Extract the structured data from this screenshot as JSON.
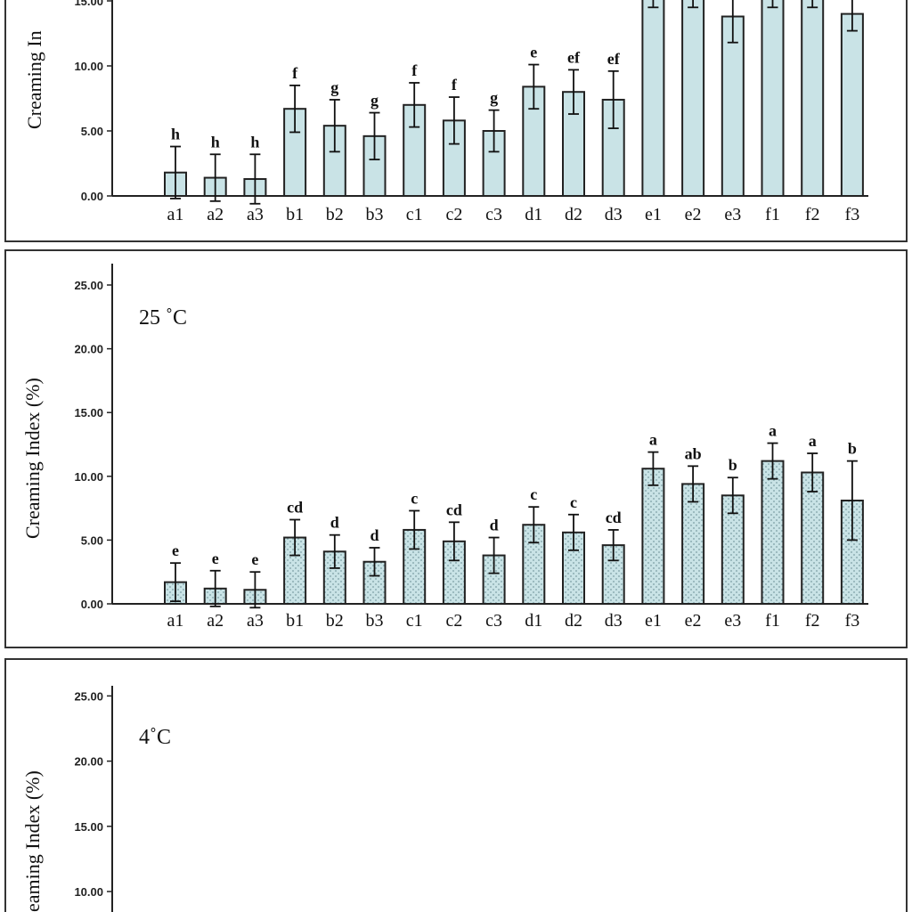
{
  "chart_data": [
    {
      "type": "bar",
      "panel": "top (cropped)",
      "title": "",
      "ylabel": "Creaming In",
      "ylim": [
        0,
        15
      ],
      "yticks": [
        "0.00",
        "5.00",
        "10.00",
        "15.00"
      ],
      "categories": [
        "a1",
        "a2",
        "a3",
        "b1",
        "b2",
        "b3",
        "c1",
        "c2",
        "c3",
        "d1",
        "d2",
        "d3",
        "e1",
        "e2",
        "e3",
        "f1",
        "f2",
        "f3"
      ],
      "values": [
        1.8,
        1.4,
        1.3,
        6.7,
        5.4,
        4.6,
        7.0,
        5.8,
        5.0,
        8.4,
        8.0,
        7.4,
        16.0,
        16.0,
        13.8,
        16.0,
        16.0,
        14.0
      ],
      "errors": [
        2.0,
        1.8,
        1.9,
        1.8,
        2.0,
        1.8,
        1.7,
        1.8,
        1.6,
        1.7,
        1.7,
        2.2,
        1.5,
        1.5,
        2.0,
        1.5,
        1.5,
        1.3
      ],
      "labels": [
        "h",
        "h",
        "h",
        "f",
        "g",
        "g",
        "f",
        "f",
        "g",
        "e",
        "ef",
        "ef",
        "",
        "",
        "",
        "",
        "",
        ""
      ],
      "bar_fill": "#c9e3e6"
    },
    {
      "type": "bar",
      "panel": "25 °C",
      "title": "25 ˚C",
      "ylabel": "Creaming Index (%)",
      "ylim": [
        0,
        25
      ],
      "yticks": [
        "0.00",
        "5.00",
        "10.00",
        "15.00",
        "20.00",
        "25.00"
      ],
      "categories": [
        "a1",
        "a2",
        "a3",
        "b1",
        "b2",
        "b3",
        "c1",
        "c2",
        "c3",
        "d1",
        "d2",
        "d3",
        "e1",
        "e2",
        "e3",
        "f1",
        "f2",
        "f3"
      ],
      "values": [
        1.7,
        1.2,
        1.1,
        5.2,
        4.1,
        3.3,
        5.8,
        4.9,
        3.8,
        6.2,
        5.6,
        4.6,
        10.6,
        9.4,
        8.5,
        11.2,
        10.3,
        8.1
      ],
      "errors": [
        1.5,
        1.4,
        1.4,
        1.4,
        1.3,
        1.1,
        1.5,
        1.5,
        1.4,
        1.4,
        1.4,
        1.2,
        1.3,
        1.4,
        1.4,
        1.4,
        1.5,
        3.1
      ],
      "labels": [
        "e",
        "e",
        "e",
        "cd",
        "d",
        "d",
        "c",
        "cd",
        "d",
        "c",
        "c",
        "cd",
        "a",
        "ab",
        "b",
        "a",
        "a",
        "b"
      ],
      "bar_fill": "#c9e3e6",
      "bar_pattern": "dotted"
    },
    {
      "type": "bar",
      "panel": "4 °C (cropped)",
      "title": "4˚C",
      "ylabel": "eaming Index (%)",
      "ylim": [
        10,
        25
      ],
      "yticks": [
        "10.00",
        "15.00",
        "20.00",
        "25.00"
      ],
      "categories": [],
      "values": []
    }
  ],
  "colors": {
    "bar": "#c9e3e6",
    "border": "#333333",
    "dot": "#7c9ea3"
  }
}
